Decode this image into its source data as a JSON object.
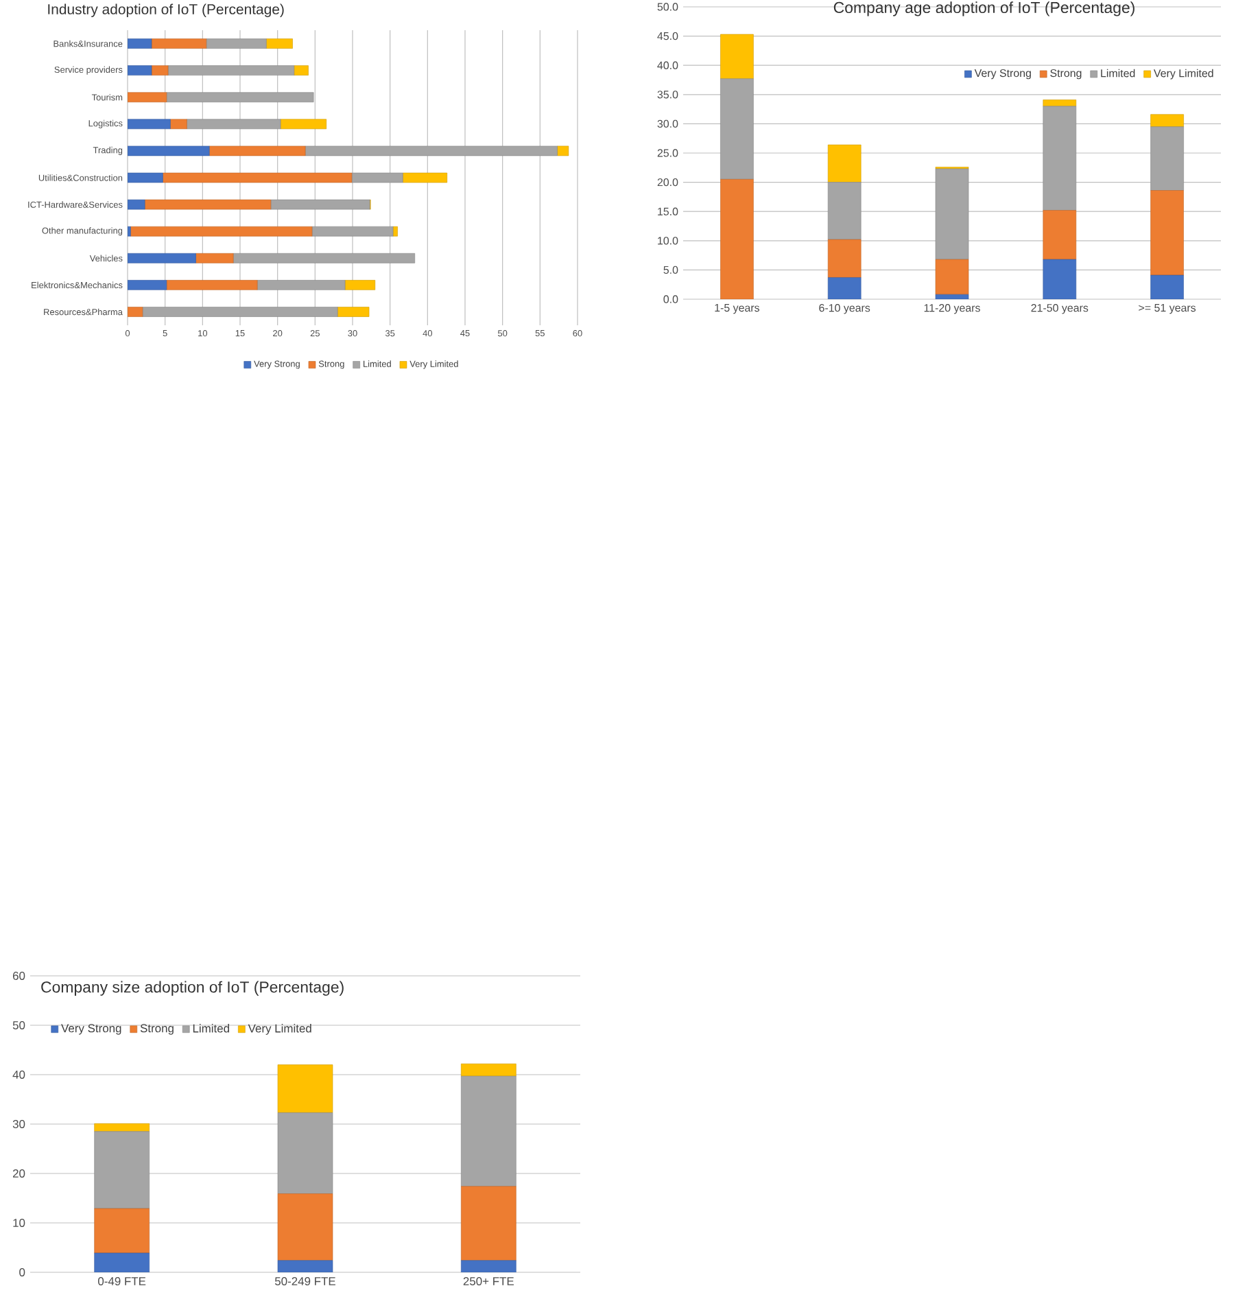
{
  "chart_data": [
    {
      "type": "bar",
      "title": "Industry adoption of IoT (Percentage)",
      "orientation": "horizontal",
      "stacked": true,
      "grid": "x",
      "legend": "bottom",
      "categories": [
        "Banks&Insurance",
        "Service providers",
        "Tourism",
        "Logistics",
        "Trading",
        "Utilities&Construction",
        "ICT-Hardware&Services",
        "Other manufacturing",
        "Vehicles",
        "Elektronics&Mechanics",
        "Resources&Pharma"
      ],
      "xlim": [
        0,
        60
      ],
      "xticks": [
        0,
        5,
        10,
        15,
        20,
        25,
        30,
        35,
        40,
        45,
        50,
        55,
        60
      ],
      "series": [
        {
          "name": "Very Strong",
          "color": "#4472c4",
          "values": [
            3.2,
            3.2,
            0,
            5.7,
            10.9,
            4.7,
            2.3,
            0.4,
            9.1,
            5.2,
            0
          ]
        },
        {
          "name": "Strong",
          "color": "#ed7d31",
          "values": [
            7.3,
            2.2,
            5.2,
            2.2,
            12.8,
            25.2,
            16.8,
            24.2,
            5.0,
            12.1,
            2.0
          ]
        },
        {
          "name": "Limited",
          "color": "#a5a5a5",
          "values": [
            8.0,
            16.8,
            19.6,
            12.5,
            33.6,
            6.8,
            13.2,
            10.8,
            24.2,
            11.7,
            26.0
          ]
        },
        {
          "name": "Very Limited",
          "color": "#ffc000",
          "values": [
            3.5,
            1.9,
            0,
            6.1,
            1.5,
            5.9,
            0.1,
            0.6,
            0,
            4.0,
            4.2
          ]
        }
      ]
    },
    {
      "type": "bar",
      "title": "Company age adoption of IoT (Percentage)",
      "stacked": true,
      "grid": "y",
      "legend": "top right",
      "categories": [
        "1-5 years",
        "6-10 years",
        "11-20 years",
        "21-50 years",
        ">= 51 years"
      ],
      "ylim": [
        0,
        50
      ],
      "yticks": [
        {
          "value": 0,
          "label": "0.0"
        },
        {
          "value": 5,
          "label": "5.0"
        },
        {
          "value": 10,
          "label": "10.0"
        },
        {
          "value": 15,
          "label": "15.0"
        },
        {
          "value": 20,
          "label": "20.0"
        },
        {
          "value": 25,
          "label": "25.0"
        },
        {
          "value": 30,
          "label": "30.0"
        },
        {
          "value": 35,
          "label": "35.0"
        },
        {
          "value": 40,
          "label": "40.0"
        },
        {
          "value": 45,
          "label": "45.0"
        },
        {
          "value": 50,
          "label": "50.0"
        }
      ],
      "series": [
        {
          "name": "Very Strong",
          "color": "#4472c4",
          "values": [
            0,
            3.7,
            0.8,
            6.8,
            4.1
          ]
        },
        {
          "name": "Strong",
          "color": "#ed7d31",
          "values": [
            20.5,
            6.5,
            6.0,
            8.4,
            14.5
          ]
        },
        {
          "name": "Limited",
          "color": "#a5a5a5",
          "values": [
            17.2,
            9.8,
            15.5,
            17.8,
            10.9
          ]
        },
        {
          "name": "Very Limited",
          "color": "#ffc000",
          "values": [
            7.6,
            6.4,
            0.3,
            1.1,
            2.1
          ]
        }
      ]
    },
    {
      "type": "bar",
      "title": "Company size adoption of IoT (Percentage)",
      "stacked": true,
      "grid": "y",
      "legend": "top left",
      "categories": [
        "0-49 FTE",
        "50-249 FTE",
        "250+ FTE"
      ],
      "ylim": [
        0,
        60
      ],
      "yticks": [
        0,
        10,
        20,
        30,
        40,
        50,
        60
      ],
      "series": [
        {
          "name": "Very Strong",
          "color": "#4472c4",
          "values": [
            3.9,
            2.4,
            2.4
          ]
        },
        {
          "name": "Strong",
          "color": "#ed7d31",
          "values": [
            9.0,
            13.5,
            15.0
          ]
        },
        {
          "name": "Limited",
          "color": "#a5a5a5",
          "values": [
            15.6,
            16.4,
            22.3
          ]
        },
        {
          "name": "Very Limited",
          "color": "#ffc000",
          "values": [
            1.6,
            9.7,
            2.5
          ]
        }
      ]
    }
  ]
}
